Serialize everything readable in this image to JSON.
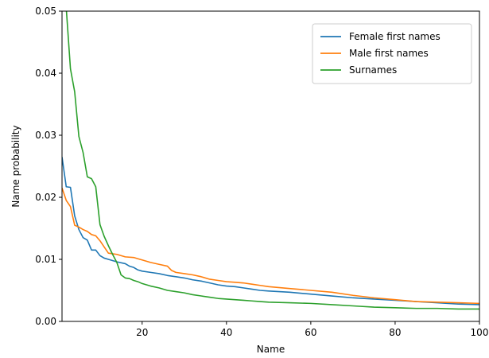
{
  "chart_data": {
    "type": "line",
    "title": "",
    "xlabel": "Name",
    "ylabel": "Name probability",
    "xlim": [
      1,
      100
    ],
    "ylim": [
      0.0,
      0.05
    ],
    "grid": false,
    "legend_position": "top-right",
    "x_ticks": [
      20,
      40,
      60,
      80,
      100
    ],
    "x_tick_labels": [
      "20",
      "40",
      "60",
      "80",
      "100"
    ],
    "y_ticks": [
      0.0,
      0.01,
      0.02,
      0.03,
      0.04,
      0.05
    ],
    "y_tick_labels": [
      "0.00",
      "0.01",
      "0.02",
      "0.03",
      "0.04",
      "0.05"
    ],
    "series": [
      {
        "name": "Female first names",
        "color": "#1f77b4",
        "points": [
          [
            1,
            0.0265
          ],
          [
            2,
            0.0217
          ],
          [
            3,
            0.0216
          ],
          [
            4,
            0.017
          ],
          [
            5,
            0.0148
          ],
          [
            6,
            0.0135
          ],
          [
            7,
            0.0131
          ],
          [
            8,
            0.0115
          ],
          [
            9,
            0.0115
          ],
          [
            10,
            0.0106
          ],
          [
            11,
            0.0102
          ],
          [
            12,
            0.01
          ],
          [
            14,
            0.0096
          ],
          [
            16,
            0.0093
          ],
          [
            17,
            0.0089
          ],
          [
            18,
            0.0087
          ],
          [
            19,
            0.0083
          ],
          [
            20,
            0.0081
          ],
          [
            22,
            0.0079
          ],
          [
            24,
            0.0077
          ],
          [
            26,
            0.0074
          ],
          [
            28,
            0.0072
          ],
          [
            30,
            0.007
          ],
          [
            32,
            0.0067
          ],
          [
            34,
            0.0065
          ],
          [
            36,
            0.0062
          ],
          [
            38,
            0.0059
          ],
          [
            40,
            0.0057
          ],
          [
            42,
            0.0056
          ],
          [
            44,
            0.0054
          ],
          [
            46,
            0.0052
          ],
          [
            48,
            0.005
          ],
          [
            50,
            0.0049
          ],
          [
            55,
            0.0047
          ],
          [
            60,
            0.0044
          ],
          [
            65,
            0.0041
          ],
          [
            70,
            0.0038
          ],
          [
            75,
            0.0036
          ],
          [
            80,
            0.0034
          ],
          [
            85,
            0.0032
          ],
          [
            90,
            0.003
          ],
          [
            95,
            0.0028
          ],
          [
            100,
            0.0027
          ]
        ]
      },
      {
        "name": "Male first names",
        "color": "#ff7f0e",
        "points": [
          [
            1,
            0.0215
          ],
          [
            2,
            0.0195
          ],
          [
            3,
            0.0185
          ],
          [
            4,
            0.0155
          ],
          [
            5,
            0.0152
          ],
          [
            6,
            0.0148
          ],
          [
            7,
            0.0145
          ],
          [
            8,
            0.014
          ],
          [
            9,
            0.0138
          ],
          [
            10,
            0.013
          ],
          [
            11,
            0.012
          ],
          [
            12,
            0.011
          ],
          [
            14,
            0.0108
          ],
          [
            16,
            0.0104
          ],
          [
            18,
            0.0103
          ],
          [
            19,
            0.0101
          ],
          [
            20,
            0.0099
          ],
          [
            22,
            0.0095
          ],
          [
            24,
            0.0092
          ],
          [
            26,
            0.0089
          ],
          [
            27,
            0.0082
          ],
          [
            28,
            0.0079
          ],
          [
            30,
            0.0077
          ],
          [
            32,
            0.0075
          ],
          [
            34,
            0.0072
          ],
          [
            36,
            0.0068
          ],
          [
            38,
            0.0066
          ],
          [
            40,
            0.0064
          ],
          [
            42,
            0.0063
          ],
          [
            44,
            0.0062
          ],
          [
            46,
            0.006
          ],
          [
            48,
            0.0058
          ],
          [
            50,
            0.0056
          ],
          [
            55,
            0.0053
          ],
          [
            60,
            0.005
          ],
          [
            65,
            0.0047
          ],
          [
            70,
            0.0042
          ],
          [
            75,
            0.0038
          ],
          [
            80,
            0.0035
          ],
          [
            85,
            0.0032
          ],
          [
            90,
            0.0031
          ],
          [
            95,
            0.003
          ],
          [
            100,
            0.0029
          ]
        ]
      },
      {
        "name": "Surnames",
        "color": "#2ca02c",
        "points": [
          [
            2,
            0.0505
          ],
          [
            3,
            0.0407
          ],
          [
            4,
            0.037
          ],
          [
            5,
            0.0298
          ],
          [
            6,
            0.0272
          ],
          [
            7,
            0.0233
          ],
          [
            8,
            0.023
          ],
          [
            9,
            0.0217
          ],
          [
            10,
            0.0156
          ],
          [
            11,
            0.0137
          ],
          [
            12,
            0.0122
          ],
          [
            13,
            0.0108
          ],
          [
            14,
            0.0095
          ],
          [
            15,
            0.0075
          ],
          [
            16,
            0.007
          ],
          [
            17,
            0.0069
          ],
          [
            18,
            0.0066
          ],
          [
            19,
            0.0064
          ],
          [
            20,
            0.0061
          ],
          [
            22,
            0.0057
          ],
          [
            24,
            0.0054
          ],
          [
            26,
            0.005
          ],
          [
            28,
            0.0048
          ],
          [
            30,
            0.0046
          ],
          [
            32,
            0.0043
          ],
          [
            34,
            0.0041
          ],
          [
            36,
            0.0039
          ],
          [
            38,
            0.0037
          ],
          [
            40,
            0.0036
          ],
          [
            42,
            0.0035
          ],
          [
            44,
            0.0034
          ],
          [
            46,
            0.0033
          ],
          [
            48,
            0.0032
          ],
          [
            50,
            0.0031
          ],
          [
            55,
            0.003
          ],
          [
            60,
            0.0029
          ],
          [
            65,
            0.0027
          ],
          [
            70,
            0.0025
          ],
          [
            75,
            0.0023
          ],
          [
            80,
            0.0022
          ],
          [
            85,
            0.0021
          ],
          [
            90,
            0.0021
          ],
          [
            95,
            0.002
          ],
          [
            100,
            0.002
          ]
        ]
      }
    ]
  }
}
